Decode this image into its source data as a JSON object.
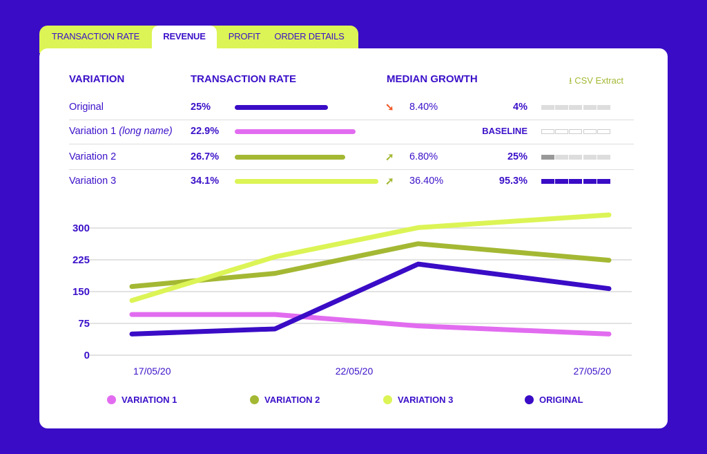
{
  "tabs": [
    {
      "label": "TRANSACTION RATE",
      "active": false
    },
    {
      "label": "REVENUE",
      "active": true
    },
    {
      "label": "PROFIT",
      "active": false
    },
    {
      "label": "ORDER DETAILS",
      "active": false
    }
  ],
  "table": {
    "headers": {
      "variation": "VARIATION",
      "transaction_rate": "TRANSACTION RATE",
      "median_growth": "MEDIAN GROWTH"
    },
    "csv_extract": {
      "label": "CSV Extract",
      "icon": "download-icon"
    },
    "rows": [
      {
        "name": "Original",
        "suffix": "",
        "rate": "25%",
        "bar_fill": 0.65,
        "color": "#3a0cc6",
        "trend": "down",
        "growth": "8.40%",
        "significance": "4%",
        "segments_filled": 0,
        "segment_style": "gray"
      },
      {
        "name": "Variation 1",
        "suffix": "(long name)",
        "rate": "22.9%",
        "bar_fill": 0.84,
        "color": "#e26cf0",
        "trend": "",
        "growth": "",
        "significance": "BASELINE",
        "segments_filled": 0,
        "segment_style": "outline"
      },
      {
        "name": "Variation 2",
        "suffix": "",
        "rate": "26.7%",
        "bar_fill": 0.77,
        "color": "#a4b833",
        "trend": "up",
        "growth": "6.80%",
        "significance": "25%",
        "segments_filled": 1,
        "segment_style": "darkgray"
      },
      {
        "name": "Variation 3",
        "suffix": "",
        "rate": "34.1%",
        "bar_fill": 1.0,
        "color": "#dcf455",
        "trend": "up",
        "growth": "36.40%",
        "significance": "95.3%",
        "segments_filled": 5,
        "segment_style": "purple"
      }
    ]
  },
  "colors": {
    "primary": "#3a0cc6",
    "up": "#a4b833",
    "down": "#f05a28",
    "accent": "#dcf455"
  },
  "chart_data": {
    "type": "line",
    "ylim": [
      0,
      300
    ],
    "yticks": [
      "0",
      "75",
      "150",
      "225",
      "300"
    ],
    "xticks": [
      "17/05/20",
      "22/05/20",
      "27/05/20"
    ],
    "x": [
      "17/05/20",
      "20/05/20",
      "23/05/20",
      "27/05/20"
    ],
    "grid": true,
    "legend": "bottom",
    "series": [
      {
        "name": "VARIATION 1",
        "color": "#e26cf0",
        "values": [
          96,
          96,
          69,
          50
        ]
      },
      {
        "name": "VARIATION 2",
        "color": "#a4b833",
        "values": [
          162,
          193,
          263,
          224
        ]
      },
      {
        "name": "VARIATION 3",
        "color": "#dcf455",
        "values": [
          129,
          232,
          301,
          331
        ]
      },
      {
        "name": "ORIGINAL",
        "color": "#3a0cc6",
        "values": [
          50,
          62,
          215,
          157
        ]
      }
    ]
  }
}
